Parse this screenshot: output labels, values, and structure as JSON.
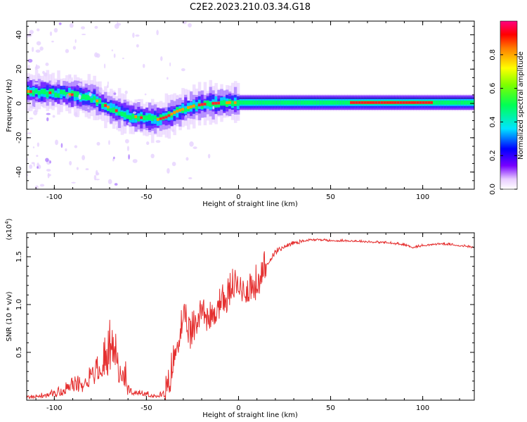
{
  "page_title": "C2E2.2023.210.03.34.G18",
  "chart_data": [
    {
      "type": "heatmap",
      "title": "C2E2.2023.210.03.34.G18",
      "xlabel": "Height of straight line (km)",
      "ylabel": "Frequency (Hz)",
      "xlim": [
        -115,
        128
      ],
      "ylim": [
        -50,
        48
      ],
      "xticks": [
        -100,
        -50,
        0,
        50,
        100
      ],
      "yticks": [
        40,
        20,
        0,
        -20,
        -40
      ],
      "xtick_labels": [
        "-100",
        "-50",
        "0",
        "50",
        "100"
      ],
      "ytick_labels": [
        "40",
        "20",
        "0",
        "-20",
        "-40"
      ],
      "grid": false,
      "colorbar": {
        "label": "Normalized spectral amplitude",
        "range": [
          0,
          1
        ],
        "ticks": [
          0.0,
          0.2,
          0.4,
          0.6,
          0.8
        ],
        "tick_labels": [
          "0.0",
          "0.2",
          "0.4",
          "0.6",
          "0.8"
        ],
        "colors": [
          "#ffffff",
          "#7700ff",
          "#0000ff",
          "#00e5ff",
          "#00ff55",
          "#7dff00",
          "#ffff00",
          "#ff7a00",
          "#ff0000",
          "#ff0080"
        ]
      },
      "ridge": {
        "x": [
          -115,
          -100,
          -90,
          -80,
          -75,
          -70,
          -65,
          -60,
          -55,
          -50,
          -45,
          -40,
          -35,
          -30,
          -25,
          -20,
          -15,
          -10,
          -5,
          0,
          10,
          20,
          40,
          60,
          80,
          100,
          128
        ],
        "y": [
          7,
          6,
          5,
          3,
          0,
          -3,
          -5,
          -7,
          -8,
          -9,
          -9.5,
          -8,
          -5,
          -3,
          -1.5,
          -0.5,
          0,
          0.3,
          0.5,
          0.5,
          0.5,
          0.5,
          0.5,
          0.5,
          0.5,
          0.5,
          0.5
        ]
      }
    },
    {
      "type": "line",
      "xlabel": "Height of straight line (km)",
      "ylabel": "SNR (10 * v/v)",
      "y_multiplier": "(x10",
      "y_multiplier_exp": "4",
      "y_multiplier_close": ")",
      "xlim": [
        -115,
        128
      ],
      "ylim": [
        0,
        1.75
      ],
      "xticks": [
        -100,
        -50,
        0,
        50,
        100
      ],
      "yticks": [
        0.5,
        1.0,
        1.5
      ],
      "xtick_labels": [
        "-100",
        "-50",
        "0",
        "50",
        "100"
      ],
      "ytick_labels": [
        "0.5",
        "1.0",
        "1.5"
      ],
      "grid": false,
      "color": "#e53030",
      "series": [
        {
          "x": [
            -115,
            -105,
            -95,
            -90,
            -85,
            -80,
            -75,
            -72,
            -70,
            -68,
            -66,
            -64,
            -62,
            -60,
            -55,
            -50,
            -45,
            -40,
            -38,
            -36,
            -34,
            -32,
            -30,
            -28,
            -26,
            -24,
            -22,
            -20,
            -18,
            -16,
            -14,
            -12,
            -10,
            -8,
            -6,
            -4,
            -2,
            0,
            4,
            8,
            12,
            16,
            20,
            25,
            30,
            35,
            40,
            45,
            50,
            55,
            60,
            70,
            80,
            90,
            95,
            100,
            110,
            120,
            128
          ],
          "y": [
            0.03,
            0.05,
            0.1,
            0.18,
            0.2,
            0.28,
            0.38,
            0.5,
            0.62,
            0.55,
            0.45,
            0.38,
            0.3,
            0.12,
            0.07,
            0.06,
            0.05,
            0.07,
            0.15,
            0.38,
            0.55,
            0.75,
            0.85,
            0.8,
            0.7,
            0.8,
            0.9,
            1.05,
            0.95,
            0.85,
            0.9,
            1.0,
            1.05,
            1.1,
            1.1,
            1.2,
            1.25,
            1.2,
            1.2,
            1.2,
            1.3,
            1.45,
            1.55,
            1.62,
            1.65,
            1.67,
            1.68,
            1.68,
            1.67,
            1.67,
            1.67,
            1.66,
            1.65,
            1.63,
            1.6,
            1.62,
            1.64,
            1.62,
            1.6
          ]
        }
      ]
    }
  ]
}
